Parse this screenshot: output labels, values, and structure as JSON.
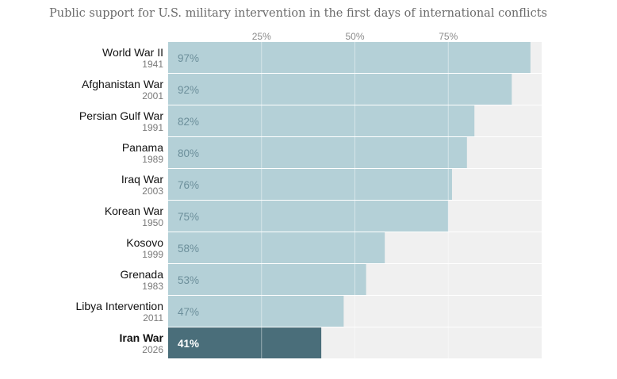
{
  "chart_data": {
    "type": "bar",
    "orientation": "horizontal",
    "title": "Public support for U.S. military intervention in the first days of international conflicts",
    "xlabel": "",
    "ylabel": "",
    "xlim": [
      0,
      100
    ],
    "x_ticks": [
      25,
      50,
      75
    ],
    "x_tick_labels": [
      "25%",
      "50%",
      "75%"
    ],
    "categories": [
      "World War II",
      "Afghanistan War",
      "Persian Gulf War",
      "Panama",
      "Iraq War",
      "Korean War",
      "Kosovo",
      "Grenada",
      "Libya Intervention",
      "Iran War"
    ],
    "years": [
      "1941",
      "2001",
      "1991",
      "1989",
      "2003",
      "1950",
      "1999",
      "1983",
      "2011",
      "2026"
    ],
    "values": [
      97,
      92,
      82,
      80,
      76,
      75,
      58,
      53,
      47,
      41
    ],
    "value_labels": [
      "97%",
      "92%",
      "82%",
      "80%",
      "76%",
      "75%",
      "58%",
      "53%",
      "47%",
      "41%"
    ],
    "highlight": "Iran War",
    "colors": {
      "bar": "#b4d0d7",
      "highlight_bar": "#4a6e7a",
      "background_track": "#f0f0f0",
      "gridline": "#ffffff"
    }
  }
}
